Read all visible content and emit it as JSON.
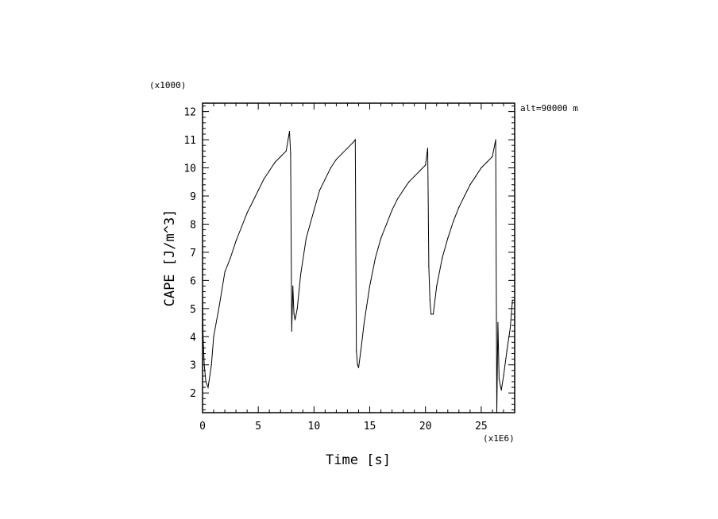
{
  "chart_data": {
    "type": "line",
    "xlabel": "Time [s]",
    "ylabel": "CAPE [J/m^3]",
    "x_multiplier_label": "(x1E6)",
    "y_multiplier_label": "(x1000)",
    "annotation": "alt=90000 m",
    "xlim": [
      0,
      28
    ],
    "ylim": [
      1.3,
      12.3
    ],
    "x_ticks": [
      0,
      5,
      10,
      15,
      20,
      25
    ],
    "y_ticks": [
      2,
      3,
      4,
      5,
      6,
      7,
      8,
      9,
      10,
      11,
      12
    ],
    "grid": false,
    "series": [
      {
        "x": [
          0,
          0.05,
          0.15,
          0.3,
          0.5,
          0.8,
          1.0,
          1.5,
          2.0,
          2.5,
          3.0,
          3.5,
          4.0,
          4.5,
          5.0,
          5.5,
          6.0,
          6.5,
          7.0,
          7.5,
          7.8,
          7.9,
          8.0,
          8.1,
          8.2,
          8.3,
          8.5,
          8.8,
          9.3,
          10.0,
          10.5,
          11.0,
          11.5,
          12.0,
          12.5,
          13.0,
          13.5,
          13.7,
          13.8,
          13.9,
          14.0,
          14.2,
          14.5,
          15.0,
          15.5,
          16.0,
          16.5,
          17.0,
          17.5,
          18.0,
          18.5,
          19.0,
          19.5,
          20.0,
          20.2,
          20.3,
          20.4,
          20.5,
          20.7,
          21.0,
          21.5,
          22.0,
          22.5,
          23.0,
          23.5,
          24.0,
          24.5,
          25.0,
          25.5,
          26.0,
          26.3,
          26.4,
          26.5,
          26.6,
          26.8,
          27.0,
          27.3,
          27.6,
          27.8,
          28.0
        ],
        "y": [
          5.6,
          4.0,
          3.0,
          2.4,
          2.2,
          3.0,
          4.0,
          5.1,
          6.3,
          6.8,
          7.4,
          7.9,
          8.4,
          8.8,
          9.2,
          9.6,
          9.9,
          10.2,
          10.4,
          10.6,
          11.3,
          10.5,
          4.2,
          5.8,
          4.8,
          4.6,
          5.0,
          6.2,
          7.5,
          8.5,
          9.2,
          9.6,
          10.0,
          10.3,
          10.5,
          10.7,
          10.9,
          11.0,
          3.5,
          3.0,
          2.9,
          3.5,
          4.5,
          5.8,
          6.8,
          7.5,
          8.0,
          8.5,
          8.9,
          9.2,
          9.5,
          9.7,
          9.9,
          10.1,
          10.7,
          6.5,
          5.3,
          4.8,
          4.8,
          5.8,
          6.8,
          7.5,
          8.1,
          8.6,
          9.0,
          9.4,
          9.7,
          10.0,
          10.2,
          10.4,
          11.0,
          1.3,
          4.5,
          2.5,
          2.1,
          2.6,
          3.5,
          4.3,
          5.3,
          5.3
        ]
      }
    ]
  }
}
